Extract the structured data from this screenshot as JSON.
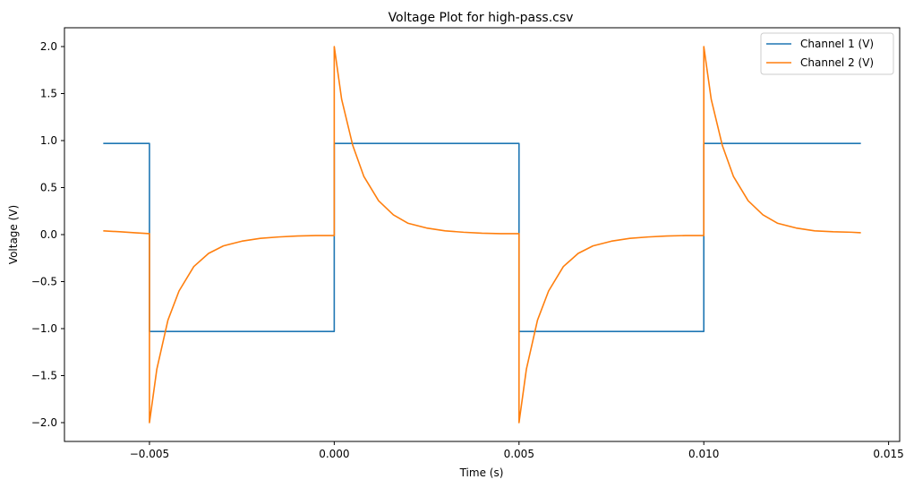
{
  "chart_data": {
    "type": "line",
    "title": "Voltage Plot for high-pass.csv",
    "xlabel": "Time (s)",
    "ylabel": "Voltage (V)",
    "xlim": [
      -0.0073,
      0.0153
    ],
    "ylim": [
      -2.2,
      2.2
    ],
    "xticks": [
      -0.005,
      0.0,
      0.005,
      0.01,
      0.015
    ],
    "xtick_labels": [
      "−0.005",
      "0.000",
      "0.005",
      "0.010",
      "0.015"
    ],
    "yticks": [
      2.0,
      1.5,
      1.0,
      0.5,
      0.0,
      -0.5,
      -1.0,
      -1.5,
      -2.0
    ],
    "ytick_labels": [
      "2.0",
      "1.5",
      "1.0",
      "0.5",
      "0.0",
      "−0.5",
      "−1.0",
      "−1.5",
      "−2.0"
    ],
    "grid": false,
    "legend_position": "top-right",
    "series": [
      {
        "name": "Channel 1 (V)",
        "color": "#1f77b4",
        "x": [
          -0.00625,
          -0.005,
          -0.005,
          0.0,
          0.0,
          0.005,
          0.005,
          0.01,
          0.01,
          0.01425
        ],
        "y": [
          0.97,
          0.97,
          -1.03,
          -1.03,
          0.97,
          0.97,
          -1.03,
          -1.03,
          0.97,
          0.97
        ]
      },
      {
        "name": "Channel 2 (V)",
        "color": "#ff7f0e",
        "x": [
          -0.00625,
          -0.0058,
          -0.0054,
          -0.005,
          -0.005,
          -0.0048,
          -0.0045,
          -0.0042,
          -0.0038,
          -0.0034,
          -0.003,
          -0.0025,
          -0.002,
          -0.0015,
          -0.001,
          -0.0005,
          0.0,
          0.0,
          0.0002,
          0.0005,
          0.0008,
          0.0012,
          0.0016,
          0.002,
          0.0025,
          0.003,
          0.0035,
          0.004,
          0.0045,
          0.005,
          0.005,
          0.0052,
          0.0055,
          0.0058,
          0.0062,
          0.0066,
          0.007,
          0.0075,
          0.008,
          0.0085,
          0.009,
          0.0095,
          0.01,
          0.01,
          0.0102,
          0.0105,
          0.0108,
          0.0112,
          0.0116,
          0.012,
          0.0125,
          0.013,
          0.0135,
          0.014,
          0.01425
        ],
        "y": [
          0.04,
          0.03,
          0.02,
          0.01,
          -2.0,
          -1.43,
          -0.91,
          -0.6,
          -0.34,
          -0.2,
          -0.12,
          -0.07,
          -0.04,
          -0.025,
          -0.015,
          -0.01,
          -0.01,
          2.0,
          1.44,
          0.95,
          0.62,
          0.36,
          0.21,
          0.12,
          0.07,
          0.04,
          0.025,
          0.015,
          0.01,
          0.01,
          -2.0,
          -1.43,
          -0.91,
          -0.6,
          -0.34,
          -0.2,
          -0.12,
          -0.07,
          -0.04,
          -0.025,
          -0.015,
          -0.01,
          -0.01,
          2.0,
          1.44,
          0.95,
          0.62,
          0.36,
          0.21,
          0.12,
          0.07,
          0.04,
          0.03,
          0.025,
          0.02
        ]
      }
    ]
  }
}
